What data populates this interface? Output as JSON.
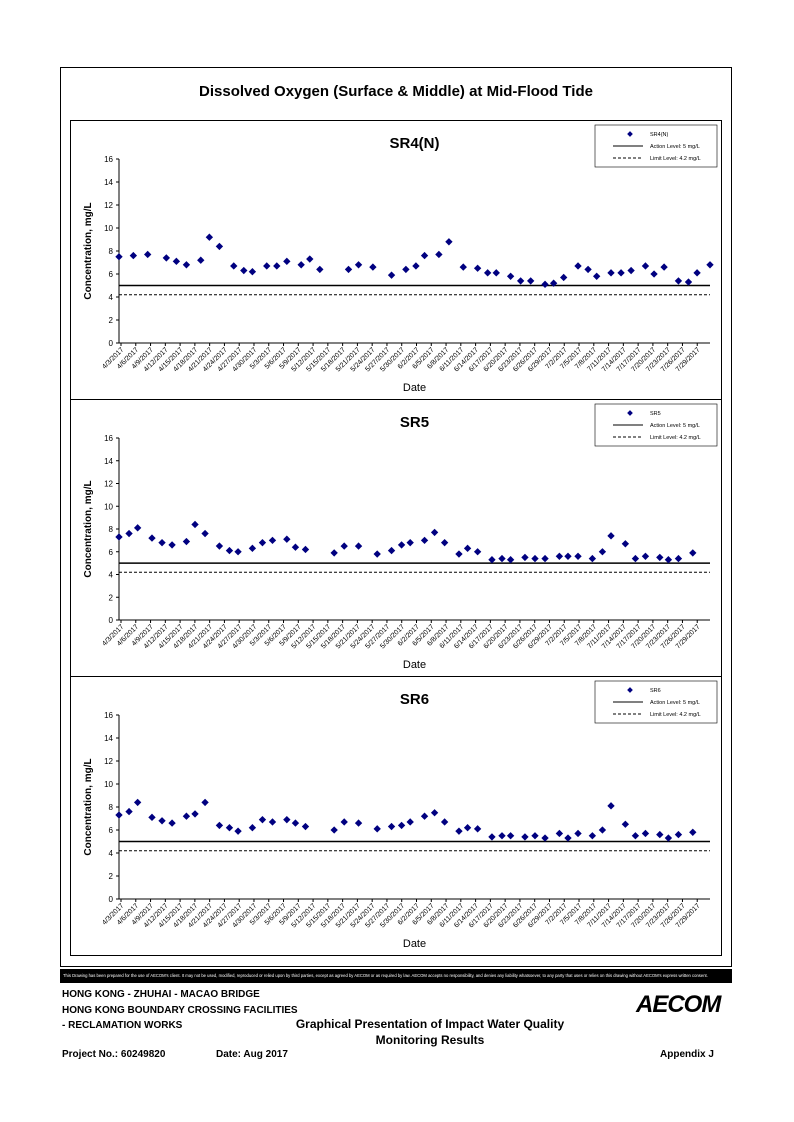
{
  "page_title": "Dissolved Oxygen (Surface & Middle) at Mid-Flood Tide",
  "chart_data": [
    {
      "type": "scatter",
      "title": "SR4(N)",
      "xlabel": "Date",
      "ylabel": "Concentration, mg/L",
      "ylim": [
        0,
        16
      ],
      "yticks": [
        "0",
        "2",
        "4",
        "6",
        "8",
        "10",
        "12",
        "14",
        "16"
      ],
      "x_categories": [
        "4/3/2017",
        "4/6/2017",
        "4/9/2017",
        "4/12/2017",
        "4/15/2017",
        "4/18/2017",
        "4/21/2017",
        "4/24/2017",
        "4/27/2017",
        "4/30/2017",
        "5/3/2017",
        "5/6/2017",
        "5/9/2017",
        "5/12/2017",
        "5/15/2017",
        "5/18/2017",
        "5/21/2017",
        "5/24/2017",
        "5/27/2017",
        "5/30/2017",
        "6/2/2017",
        "6/5/2017",
        "6/8/2017",
        "6/11/2017",
        "6/14/2017",
        "6/17/2017",
        "6/20/2017",
        "6/23/2017",
        "6/26/2017",
        "6/29/2017",
        "7/2/2017",
        "7/5/2017",
        "7/8/2017",
        "7/11/2017",
        "7/14/2017",
        "7/17/2017",
        "7/20/2017",
        "7/23/2017",
        "7/26/2017",
        "7/29/2017"
      ],
      "legend_position": "top-right",
      "series": [
        {
          "name": "SR4(N)",
          "kind": "marker",
          "color": "#000080",
          "values": [
            [
              0,
              7.5
            ],
            [
              1,
              7.6
            ],
            [
              2,
              7.7
            ],
            [
              3.3,
              7.4
            ],
            [
              4,
              7.1
            ],
            [
              4.7,
              6.8
            ],
            [
              5.7,
              7.2
            ],
            [
              6.3,
              9.2
            ],
            [
              7,
              8.4
            ],
            [
              8,
              6.7
            ],
            [
              8.7,
              6.3
            ],
            [
              9.3,
              6.2
            ],
            [
              10.3,
              6.7
            ],
            [
              11,
              6.7
            ],
            [
              11.7,
              7.1
            ],
            [
              12.7,
              6.8
            ],
            [
              13.3,
              7.3
            ],
            [
              14,
              6.4
            ],
            [
              16,
              6.4
            ],
            [
              16.7,
              6.8
            ],
            [
              17.7,
              6.6
            ],
            [
              19,
              5.9
            ],
            [
              20,
              6.4
            ],
            [
              20.7,
              6.7
            ],
            [
              21.3,
              7.6
            ],
            [
              22.3,
              7.7
            ],
            [
              23,
              8.8
            ],
            [
              24,
              6.6
            ],
            [
              25,
              6.5
            ],
            [
              25.7,
              6.1
            ],
            [
              26.3,
              6.1
            ],
            [
              27.3,
              5.8
            ],
            [
              28,
              5.4
            ],
            [
              28.7,
              5.4
            ],
            [
              29.7,
              5.1
            ],
            [
              30.3,
              5.2
            ],
            [
              31,
              5.7
            ],
            [
              32,
              6.7
            ],
            [
              32.7,
              6.4
            ],
            [
              33.3,
              5.8
            ],
            [
              34.3,
              6.1
            ],
            [
              35,
              6.1
            ],
            [
              35.7,
              6.3
            ],
            [
              36.7,
              6.7
            ],
            [
              37.3,
              6.0
            ],
            [
              38,
              6.6
            ],
            [
              39,
              5.4
            ],
            [
              39.7,
              5.3
            ],
            [
              40.3,
              6.1
            ],
            [
              41.2,
              6.8
            ]
          ]
        },
        {
          "name": "Action Level: 5 mg/L",
          "kind": "line",
          "value": 5
        },
        {
          "name": "Limit Level: 4.2 mg/L",
          "kind": "dashed",
          "value": 4.2
        }
      ]
    },
    {
      "type": "scatter",
      "title": "SR5",
      "xlabel": "Date",
      "ylabel": "Concentration, mg/L",
      "ylim": [
        0,
        16
      ],
      "yticks": [
        "0",
        "2",
        "4",
        "6",
        "8",
        "10",
        "12",
        "14",
        "16"
      ],
      "x_categories": [
        "4/3/2017",
        "4/6/2017",
        "4/9/2017",
        "4/12/2017",
        "4/15/2017",
        "4/18/2017",
        "4/21/2017",
        "4/24/2017",
        "4/27/2017",
        "4/30/2017",
        "5/3/2017",
        "5/6/2017",
        "5/9/2017",
        "5/12/2017",
        "5/15/2017",
        "5/18/2017",
        "5/21/2017",
        "5/24/2017",
        "5/27/2017",
        "5/30/2017",
        "6/2/2017",
        "6/5/2017",
        "6/8/2017",
        "6/11/2017",
        "6/14/2017",
        "6/17/2017",
        "6/20/2017",
        "6/23/2017",
        "6/26/2017",
        "6/29/2017",
        "7/2/2017",
        "7/5/2017",
        "7/8/2017",
        "7/11/2017",
        "7/14/2017",
        "7/17/2017",
        "7/20/2017",
        "7/23/2017",
        "7/26/2017",
        "7/29/2017"
      ],
      "legend_position": "top-right",
      "series": [
        {
          "name": "SR5",
          "kind": "marker",
          "color": "#000080",
          "values": [
            [
              0,
              7.3
            ],
            [
              0.7,
              7.6
            ],
            [
              1.3,
              8.1
            ],
            [
              2.3,
              7.2
            ],
            [
              3,
              6.8
            ],
            [
              3.7,
              6.6
            ],
            [
              4.7,
              6.9
            ],
            [
              5.3,
              8.4
            ],
            [
              6,
              7.6
            ],
            [
              7,
              6.5
            ],
            [
              7.7,
              6.1
            ],
            [
              8.3,
              6.0
            ],
            [
              9.3,
              6.3
            ],
            [
              10,
              6.8
            ],
            [
              10.7,
              7.0
            ],
            [
              11.7,
              7.1
            ],
            [
              12.3,
              6.4
            ],
            [
              13,
              6.2
            ],
            [
              15,
              5.9
            ],
            [
              15.7,
              6.5
            ],
            [
              16.7,
              6.5
            ],
            [
              18,
              5.8
            ],
            [
              19,
              6.1
            ],
            [
              19.7,
              6.6
            ],
            [
              20.3,
              6.8
            ],
            [
              21.3,
              7.0
            ],
            [
              22,
              7.7
            ],
            [
              22.7,
              6.8
            ],
            [
              23.7,
              5.8
            ],
            [
              24.3,
              6.3
            ],
            [
              25,
              6.0
            ],
            [
              26,
              5.3
            ],
            [
              26.7,
              5.4
            ],
            [
              27.3,
              5.3
            ],
            [
              28.3,
              5.5
            ],
            [
              29,
              5.4
            ],
            [
              29.7,
              5.4
            ],
            [
              30.7,
              5.6
            ],
            [
              31.3,
              5.6
            ],
            [
              32,
              5.6
            ],
            [
              33,
              5.4
            ],
            [
              33.7,
              6.0
            ],
            [
              34.3,
              7.4
            ],
            [
              35.3,
              6.7
            ],
            [
              36,
              5.4
            ],
            [
              36.7,
              5.6
            ],
            [
              37.7,
              5.5
            ],
            [
              38.3,
              5.3
            ],
            [
              39,
              5.4
            ],
            [
              40,
              5.9
            ]
          ]
        },
        {
          "name": "Action Level: 5 mg/L",
          "kind": "line",
          "value": 5
        },
        {
          "name": "Limit Level: 4.2 mg/L",
          "kind": "dashed",
          "value": 4.2
        }
      ]
    },
    {
      "type": "scatter",
      "title": "SR6",
      "xlabel": "Date",
      "ylabel": "Concentration, mg/L",
      "ylim": [
        0,
        16
      ],
      "yticks": [
        "0",
        "2",
        "4",
        "6",
        "8",
        "10",
        "12",
        "14",
        "16"
      ],
      "x_categories": [
        "4/3/2017",
        "4/6/2017",
        "4/9/2017",
        "4/12/2017",
        "4/15/2017",
        "4/18/2017",
        "4/21/2017",
        "4/24/2017",
        "4/27/2017",
        "4/30/2017",
        "5/3/2017",
        "5/6/2017",
        "5/9/2017",
        "5/12/2017",
        "5/15/2017",
        "5/18/2017",
        "5/21/2017",
        "5/24/2017",
        "5/27/2017",
        "5/30/2017",
        "6/2/2017",
        "6/5/2017",
        "6/8/2017",
        "6/11/2017",
        "6/14/2017",
        "6/17/2017",
        "6/20/2017",
        "6/23/2017",
        "6/26/2017",
        "6/29/2017",
        "7/2/2017",
        "7/5/2017",
        "7/8/2017",
        "7/11/2017",
        "7/14/2017",
        "7/17/2017",
        "7/20/2017",
        "7/23/2017",
        "7/26/2017",
        "7/29/2017"
      ],
      "legend_position": "top-right",
      "series": [
        {
          "name": "SR6",
          "kind": "marker",
          "color": "#000080",
          "values": [
            [
              0,
              7.3
            ],
            [
              0.7,
              7.6
            ],
            [
              1.3,
              8.4
            ],
            [
              2.3,
              7.1
            ],
            [
              3,
              6.8
            ],
            [
              3.7,
              6.6
            ],
            [
              4.7,
              7.2
            ],
            [
              5.3,
              7.4
            ],
            [
              6,
              8.4
            ],
            [
              7,
              6.4
            ],
            [
              7.7,
              6.2
            ],
            [
              8.3,
              5.9
            ],
            [
              9.3,
              6.2
            ],
            [
              10,
              6.9
            ],
            [
              10.7,
              6.7
            ],
            [
              11.7,
              6.9
            ],
            [
              12.3,
              6.6
            ],
            [
              13,
              6.3
            ],
            [
              15,
              6.0
            ],
            [
              15.7,
              6.7
            ],
            [
              16.7,
              6.6
            ],
            [
              18,
              6.1
            ],
            [
              19,
              6.3
            ],
            [
              19.7,
              6.4
            ],
            [
              20.3,
              6.7
            ],
            [
              21.3,
              7.2
            ],
            [
              22,
              7.5
            ],
            [
              22.7,
              6.7
            ],
            [
              23.7,
              5.9
            ],
            [
              24.3,
              6.2
            ],
            [
              25,
              6.1
            ],
            [
              26,
              5.4
            ],
            [
              26.7,
              5.5
            ],
            [
              27.3,
              5.5
            ],
            [
              28.3,
              5.4
            ],
            [
              29,
              5.5
            ],
            [
              29.7,
              5.3
            ],
            [
              30.7,
              5.7
            ],
            [
              31.3,
              5.3
            ],
            [
              32,
              5.7
            ],
            [
              33,
              5.5
            ],
            [
              33.7,
              6.0
            ],
            [
              34.3,
              8.1
            ],
            [
              35.3,
              6.5
            ],
            [
              36,
              5.5
            ],
            [
              36.7,
              5.7
            ],
            [
              37.7,
              5.6
            ],
            [
              38.3,
              5.3
            ],
            [
              39,
              5.6
            ],
            [
              40,
              5.8
            ]
          ]
        },
        {
          "name": "Action Level: 5 mg/L",
          "kind": "line",
          "value": 5
        },
        {
          "name": "Limit Level: 4.2 mg/L",
          "kind": "dashed",
          "value": 4.2
        }
      ]
    }
  ],
  "disclaimer": "This Drawing has been prepared for the use of AECOM's client. It may not be used, modified, reproduced or relied upon by third parties, except as agreed by AECOM or as required by law. AECOM accepts no responsibility, and denies any liability whatsoever, to any party that uses or relies on this drawing without AECOM's express written consent.",
  "title_block": {
    "line1": "HONG KONG - ZHUHAI - MACAO BRIDGE",
    "line2": "HONG KONG BOUNDARY CROSSING FACILITIES",
    "line3": "- RECLAMATION WORKS",
    "drawing_title_1": "Graphical Presentation of Impact Water Quality",
    "drawing_title_2": "Monitoring Results",
    "project_no": "Project No.: 60249820",
    "date": "Date: Aug 2017",
    "appendix": "Appendix J",
    "logo_text": "AECOM"
  }
}
